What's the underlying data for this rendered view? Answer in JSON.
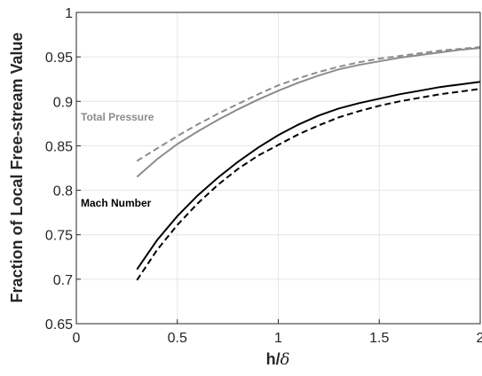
{
  "chart_data": {
    "type": "line",
    "xlabel": "h/δ",
    "ylabel": "Fraction of Local Free-stream Value",
    "xlim": [
      0,
      2
    ],
    "ylim": [
      0.65,
      1
    ],
    "xticks": [
      "0",
      "0.5",
      "1",
      "1.5",
      "2"
    ],
    "yticks": [
      "0.65",
      "0.7",
      "0.75",
      "0.8",
      "0.85",
      "0.9",
      "0.95",
      "1"
    ],
    "grid": true,
    "annotations": [
      {
        "text": "Total Pressure",
        "color": "#8c8c8c"
      },
      {
        "text": "Mach Number",
        "color": "#000000"
      }
    ],
    "series": [
      {
        "group": "Total Pressure",
        "style": "solid",
        "color": "#8c8c8c",
        "x": [
          0.3,
          0.4,
          0.5,
          0.6,
          0.7,
          0.8,
          0.9,
          1.0,
          1.1,
          1.2,
          1.3,
          1.4,
          1.5,
          1.6,
          1.7,
          1.8,
          1.9,
          2.0
        ],
        "y": [
          0.815,
          0.835,
          0.852,
          0.866,
          0.879,
          0.891,
          0.902,
          0.912,
          0.921,
          0.929,
          0.936,
          0.941,
          0.945,
          0.949,
          0.952,
          0.955,
          0.958,
          0.96
        ]
      },
      {
        "group": "Total Pressure",
        "style": "dashed",
        "color": "#8c8c8c",
        "x": [
          0.3,
          0.4,
          0.5,
          0.6,
          0.7,
          0.8,
          0.9,
          1.0,
          1.1,
          1.2,
          1.3,
          1.4,
          1.5,
          1.6,
          1.7,
          1.8,
          1.9,
          2.0
        ],
        "y": [
          0.833,
          0.847,
          0.861,
          0.874,
          0.886,
          0.897,
          0.908,
          0.918,
          0.926,
          0.933,
          0.939,
          0.944,
          0.948,
          0.951,
          0.954,
          0.957,
          0.959,
          0.961
        ]
      },
      {
        "group": "Mach Number",
        "style": "solid",
        "color": "#000000",
        "x": [
          0.3,
          0.4,
          0.5,
          0.6,
          0.7,
          0.8,
          0.9,
          1.0,
          1.1,
          1.2,
          1.3,
          1.4,
          1.5,
          1.6,
          1.7,
          1.8,
          1.9,
          2.0
        ],
        "y": [
          0.711,
          0.744,
          0.771,
          0.794,
          0.814,
          0.832,
          0.848,
          0.862,
          0.874,
          0.884,
          0.892,
          0.898,
          0.903,
          0.908,
          0.912,
          0.916,
          0.919,
          0.922
        ]
      },
      {
        "group": "Mach Number",
        "style": "dashed",
        "color": "#000000",
        "x": [
          0.3,
          0.4,
          0.5,
          0.6,
          0.7,
          0.8,
          0.9,
          1.0,
          1.1,
          1.2,
          1.3,
          1.4,
          1.5,
          1.6,
          1.7,
          1.8,
          1.9,
          2.0
        ],
        "y": [
          0.699,
          0.733,
          0.761,
          0.785,
          0.806,
          0.824,
          0.839,
          0.851,
          0.863,
          0.873,
          0.882,
          0.889,
          0.895,
          0.9,
          0.904,
          0.908,
          0.911,
          0.914
        ]
      }
    ]
  }
}
